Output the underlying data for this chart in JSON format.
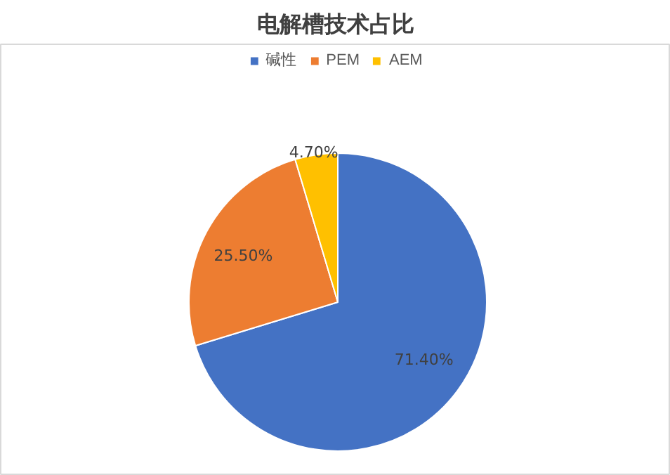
{
  "chart_data": {
    "type": "pie",
    "title": "电解槽技术占比",
    "categories": [
      "碱性",
      "PEM",
      "AEM"
    ],
    "values": [
      71.4,
      25.5,
      4.7
    ],
    "colors": [
      "#4472c4",
      "#ed7d31",
      "#ffc000"
    ],
    "value_labels": [
      "71.40%",
      "25.50%",
      "4.70%"
    ],
    "legend": "top"
  }
}
